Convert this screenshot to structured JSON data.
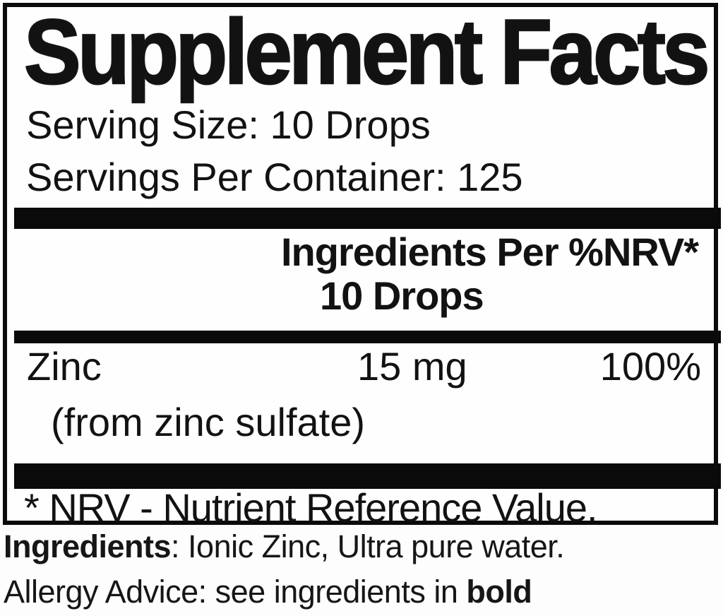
{
  "label": {
    "title": "Supplement Facts",
    "serving_size": "Serving Size: 10 Drops",
    "servings_per_container": "Servings Per Container: 125",
    "header": {
      "line1": "Ingredients Per %NRV*",
      "line2": "10 Drops"
    },
    "rows": [
      {
        "name": "Zinc",
        "amount": "15 mg",
        "nrv": "100%",
        "source": "(from zinc sulfate)"
      }
    ],
    "footnote": "* NRV - Nutrient Reference Value."
  },
  "below": {
    "ingredients_bold": "Ingredients",
    "ingredients_rest": ": Ionic Zinc, Ultra pure water.",
    "allergy_prefix": "Allergy Advice: see ingredients in ",
    "allergy_bold": "bold"
  },
  "colors": {
    "text": "#121212",
    "bar": "#0a0a0a",
    "background": "#ffffff"
  }
}
